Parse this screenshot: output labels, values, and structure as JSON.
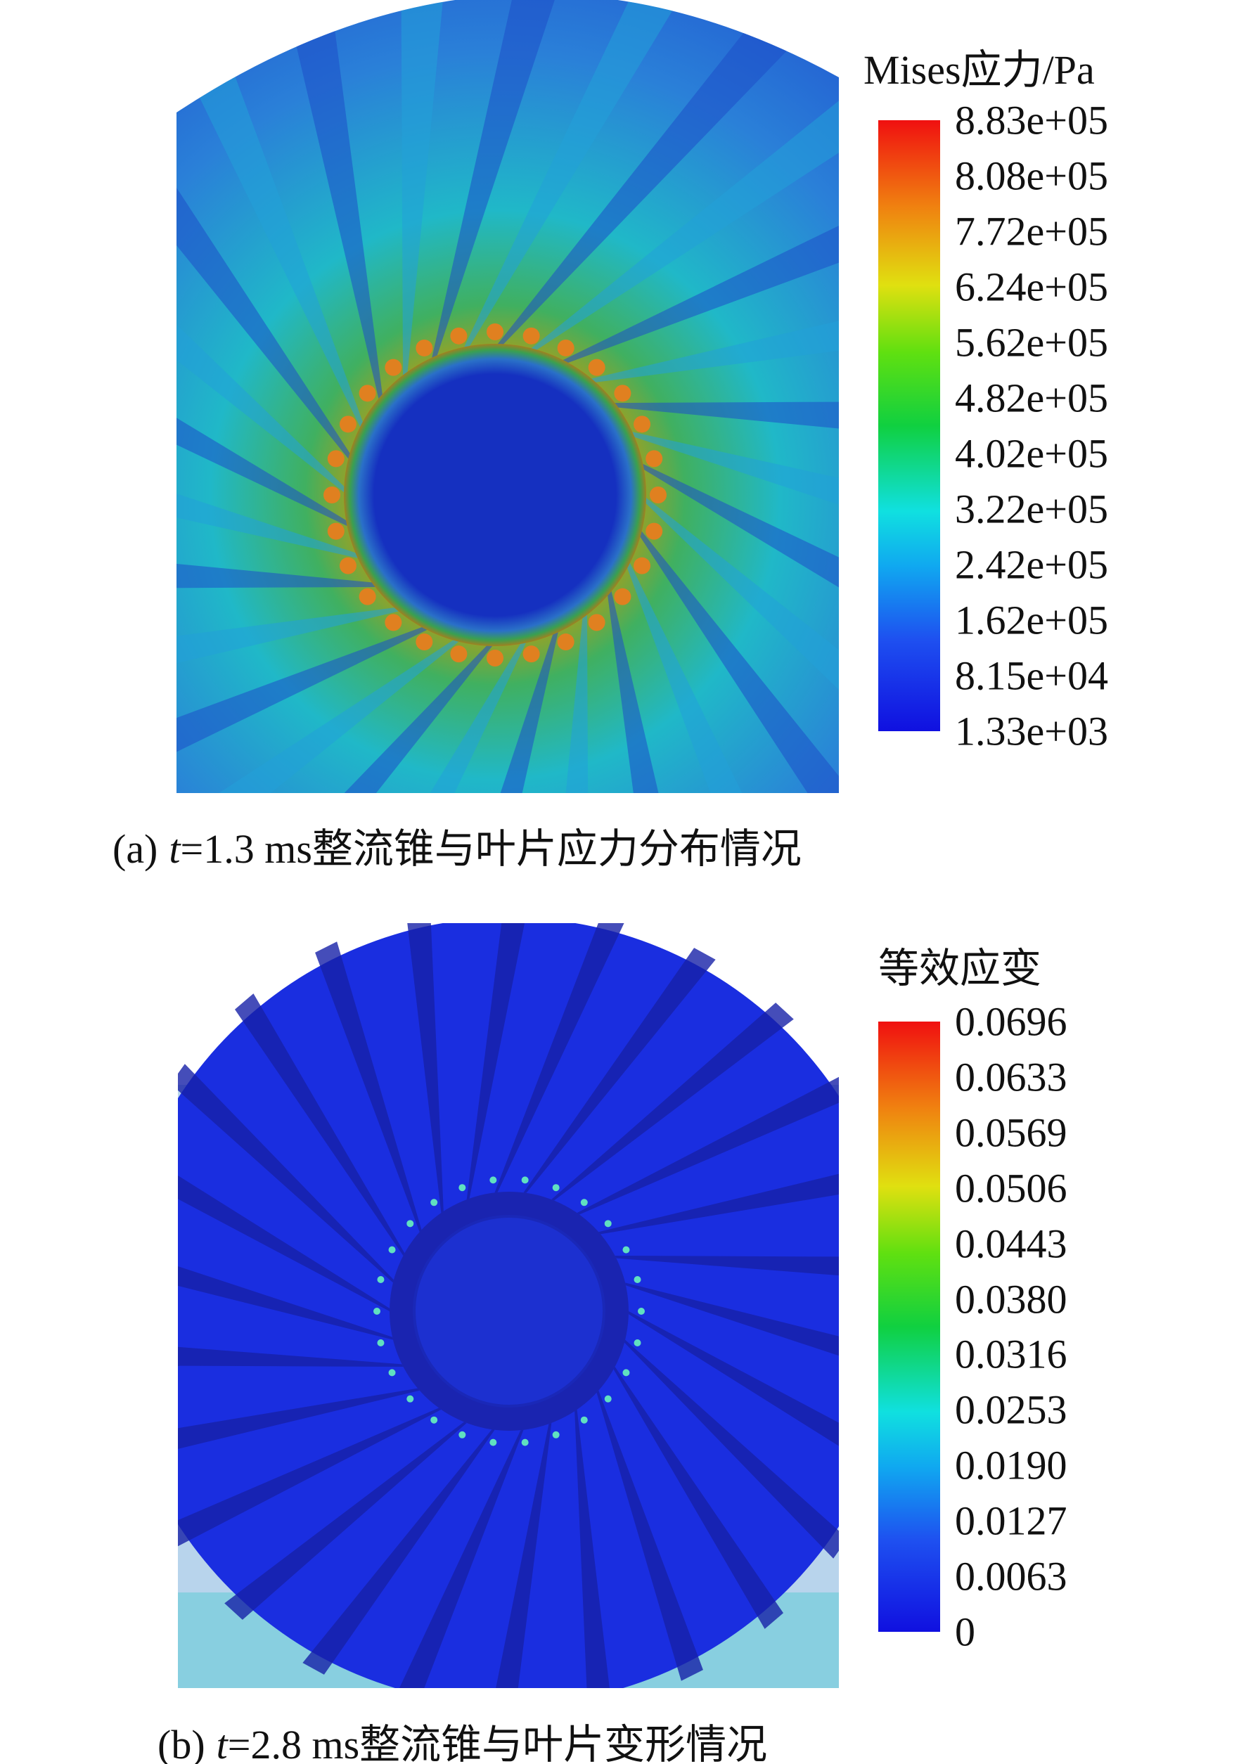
{
  "panels": [
    {
      "legend": {
        "title": "Mises应力/Pa",
        "labels": [
          "8.83e+05",
          "8.08e+05",
          "7.72e+05",
          "6.24e+05",
          "5.62e+05",
          "4.82e+05",
          "4.02e+05",
          "3.22e+05",
          "2.42e+05",
          "1.62e+05",
          "8.15e+04",
          "1.33e+03"
        ]
      },
      "caption": {
        "label": "(a)",
        "variable": "t",
        "text": "=1.3 ms整流锥与叶片应力分布情况"
      }
    },
    {
      "legend": {
        "title": "等效应变",
        "labels": [
          "0.0696",
          "0.0633",
          "0.0569",
          "0.0506",
          "0.0443",
          "0.0380",
          "0.0316",
          "0.0253",
          "0.0190",
          "0.0127",
          "0.0063",
          "0"
        ]
      },
      "caption": {
        "label": "(b)",
        "variable": "t",
        "text": "=2.8 ms整流锥与叶片变形情况"
      }
    }
  ]
}
